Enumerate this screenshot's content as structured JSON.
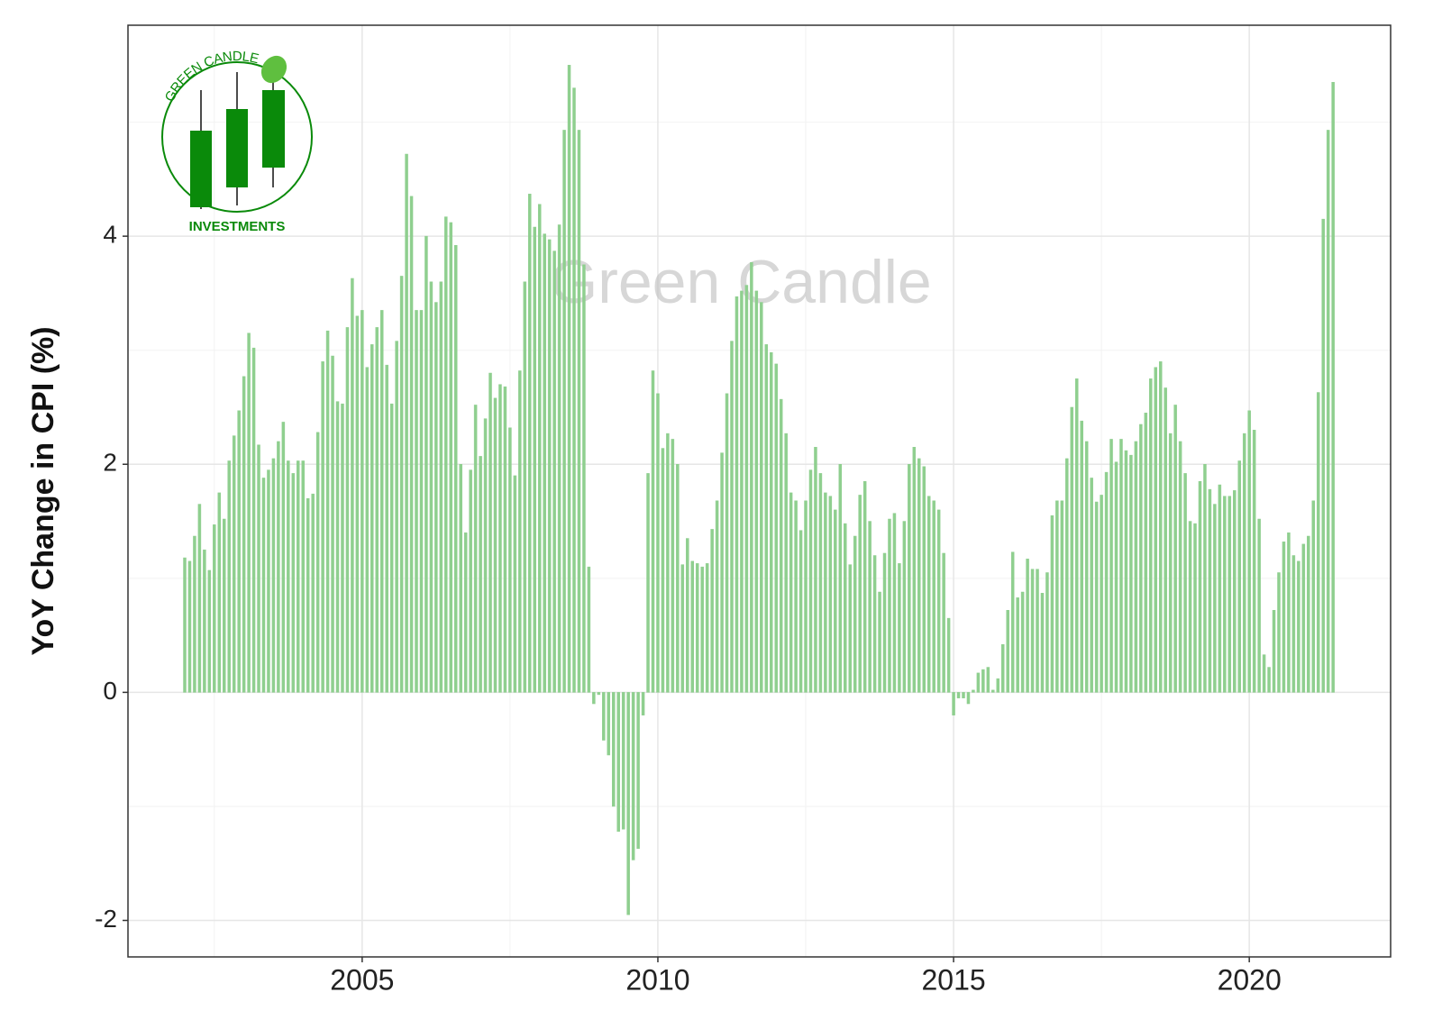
{
  "chart_data": {
    "type": "bar",
    "y_label": "YoY Change in CPI (%)",
    "watermark": "Green Candle",
    "logo_top": "GREEN CANDLE",
    "logo_bottom": "INVESTMENTS",
    "color": "#8fcf8f",
    "grid": true,
    "xlim": [
      2001.04,
      2022.39
    ],
    "xticks": [
      2005,
      2010,
      2015,
      2020
    ],
    "ylim": [
      -2.32,
      5.85
    ],
    "yticks": [
      -2,
      0,
      2,
      4
    ],
    "x": [
      "2002-01",
      "2002-02",
      "2002-03",
      "2002-04",
      "2002-05",
      "2002-06",
      "2002-07",
      "2002-08",
      "2002-09",
      "2002-10",
      "2002-11",
      "2002-12",
      "2003-01",
      "2003-02",
      "2003-03",
      "2003-04",
      "2003-05",
      "2003-06",
      "2003-07",
      "2003-08",
      "2003-09",
      "2003-10",
      "2003-11",
      "2003-12",
      "2004-01",
      "2004-02",
      "2004-03",
      "2004-04",
      "2004-05",
      "2004-06",
      "2004-07",
      "2004-08",
      "2004-09",
      "2004-10",
      "2004-11",
      "2004-12",
      "2005-01",
      "2005-02",
      "2005-03",
      "2005-04",
      "2005-05",
      "2005-06",
      "2005-07",
      "2005-08",
      "2005-09",
      "2005-10",
      "2005-11",
      "2005-12",
      "2006-01",
      "2006-02",
      "2006-03",
      "2006-04",
      "2006-05",
      "2006-06",
      "2006-07",
      "2006-08",
      "2006-09",
      "2006-10",
      "2006-11",
      "2006-12",
      "2007-01",
      "2007-02",
      "2007-03",
      "2007-04",
      "2007-05",
      "2007-06",
      "2007-07",
      "2007-08",
      "2007-09",
      "2007-10",
      "2007-11",
      "2007-12",
      "2008-01",
      "2008-02",
      "2008-03",
      "2008-04",
      "2008-05",
      "2008-06",
      "2008-07",
      "2008-08",
      "2008-09",
      "2008-10",
      "2008-11",
      "2008-12",
      "2009-01",
      "2009-02",
      "2009-03",
      "2009-04",
      "2009-05",
      "2009-06",
      "2009-07",
      "2009-08",
      "2009-09",
      "2009-10",
      "2009-11",
      "2009-12",
      "2010-01",
      "2010-02",
      "2010-03",
      "2010-04",
      "2010-05",
      "2010-06",
      "2010-07",
      "2010-08",
      "2010-09",
      "2010-10",
      "2010-11",
      "2010-12",
      "2011-01",
      "2011-02",
      "2011-03",
      "2011-04",
      "2011-05",
      "2011-06",
      "2011-07",
      "2011-08",
      "2011-09",
      "2011-10",
      "2011-11",
      "2011-12",
      "2012-01",
      "2012-02",
      "2012-03",
      "2012-04",
      "2012-05",
      "2012-06",
      "2012-07",
      "2012-08",
      "2012-09",
      "2012-10",
      "2012-11",
      "2012-12",
      "2013-01",
      "2013-02",
      "2013-03",
      "2013-04",
      "2013-05",
      "2013-06",
      "2013-07",
      "2013-08",
      "2013-09",
      "2013-10",
      "2013-11",
      "2013-12",
      "2014-01",
      "2014-02",
      "2014-03",
      "2014-04",
      "2014-05",
      "2014-06",
      "2014-07",
      "2014-08",
      "2014-09",
      "2014-10",
      "2014-11",
      "2014-12",
      "2015-01",
      "2015-02",
      "2015-03",
      "2015-04",
      "2015-05",
      "2015-06",
      "2015-07",
      "2015-08",
      "2015-09",
      "2015-10",
      "2015-11",
      "2015-12",
      "2016-01",
      "2016-02",
      "2016-03",
      "2016-04",
      "2016-05",
      "2016-06",
      "2016-07",
      "2016-08",
      "2016-09",
      "2016-10",
      "2016-11",
      "2016-12",
      "2017-01",
      "2017-02",
      "2017-03",
      "2017-04",
      "2017-05",
      "2017-06",
      "2017-07",
      "2017-08",
      "2017-09",
      "2017-10",
      "2017-11",
      "2017-12",
      "2018-01",
      "2018-02",
      "2018-03",
      "2018-04",
      "2018-05",
      "2018-06",
      "2018-07",
      "2018-08",
      "2018-09",
      "2018-10",
      "2018-11",
      "2018-12",
      "2019-01",
      "2019-02",
      "2019-03",
      "2019-04",
      "2019-05",
      "2019-06",
      "2019-07",
      "2019-08",
      "2019-09",
      "2019-10",
      "2019-11",
      "2019-12",
      "2020-01",
      "2020-02",
      "2020-03",
      "2020-04",
      "2020-05",
      "2020-06",
      "2020-07",
      "2020-08",
      "2020-09",
      "2020-10",
      "2020-11",
      "2020-12",
      "2021-01",
      "2021-02",
      "2021-03",
      "2021-04",
      "2021-05",
      "2021-06"
    ],
    "values": [
      1.18,
      1.15,
      1.37,
      1.65,
      1.25,
      1.07,
      1.47,
      1.75,
      1.52,
      2.03,
      2.25,
      2.47,
      2.77,
      3.15,
      3.02,
      2.17,
      1.88,
      1.95,
      2.05,
      2.2,
      2.37,
      2.03,
      1.92,
      2.03,
      2.03,
      1.7,
      1.74,
      2.28,
      2.9,
      3.17,
      2.95,
      2.55,
      2.53,
      3.2,
      3.63,
      3.3,
      3.35,
      2.85,
      3.05,
      3.2,
      3.35,
      2.87,
      2.53,
      3.08,
      3.65,
      4.72,
      4.35,
      3.35,
      3.35,
      4.0,
      3.6,
      3.42,
      3.6,
      4.17,
      4.12,
      3.92,
      2.0,
      1.4,
      1.95,
      2.52,
      2.07,
      2.4,
      2.8,
      2.58,
      2.7,
      2.68,
      2.32,
      1.9,
      2.82,
      3.6,
      4.37,
      4.08,
      4.28,
      4.02,
      3.97,
      3.87,
      4.1,
      4.93,
      5.5,
      5.3,
      4.93,
      3.75,
      1.1,
      -0.1,
      -0.02,
      -0.42,
      -0.55,
      -1.0,
      -1.22,
      -1.2,
      -1.95,
      -1.47,
      -1.37,
      -0.2,
      1.92,
      2.82,
      2.62,
      2.14,
      2.27,
      2.22,
      2.0,
      1.12,
      1.35,
      1.15,
      1.13,
      1.1,
      1.13,
      1.43,
      1.68,
      2.1,
      2.62,
      3.08,
      3.47,
      3.52,
      3.57,
      3.77,
      3.52,
      3.42,
      3.05,
      2.98,
      2.88,
      2.57,
      2.27,
      1.75,
      1.68,
      1.42,
      1.68,
      1.95,
      2.15,
      1.92,
      1.75,
      1.72,
      1.6,
      2.0,
      1.48,
      1.12,
      1.37,
      1.73,
      1.85,
      1.5,
      1.2,
      0.88,
      1.22,
      1.52,
      1.57,
      1.13,
      1.5,
      2.0,
      2.15,
      2.05,
      1.98,
      1.72,
      1.68,
      1.6,
      1.22,
      0.65,
      -0.2,
      -0.05,
      -0.05,
      -0.1,
      0.02,
      0.17,
      0.2,
      0.22,
      0.02,
      0.12,
      0.42,
      0.72,
      1.23,
      0.83,
      0.88,
      1.17,
      1.08,
      1.08,
      0.87,
      1.05,
      1.55,
      1.68,
      1.68,
      2.05,
      2.5,
      2.75,
      2.38,
      2.2,
      1.88,
      1.67,
      1.73,
      1.93,
      2.22,
      2.02,
      2.22,
      2.12,
      2.08,
      2.2,
      2.35,
      2.45,
      2.75,
      2.85,
      2.9,
      2.67,
      2.27,
      2.52,
      2.2,
      1.92,
      1.5,
      1.48,
      1.85,
      2.0,
      1.78,
      1.65,
      1.82,
      1.72,
      1.72,
      1.77,
      2.03,
      2.27,
      2.47,
      2.3,
      1.52,
      0.33,
      0.22,
      0.72,
      1.05,
      1.32,
      1.4,
      1.2,
      1.15,
      1.3,
      1.37,
      1.68,
      2.63,
      4.15,
      4.93,
      5.35
    ]
  }
}
